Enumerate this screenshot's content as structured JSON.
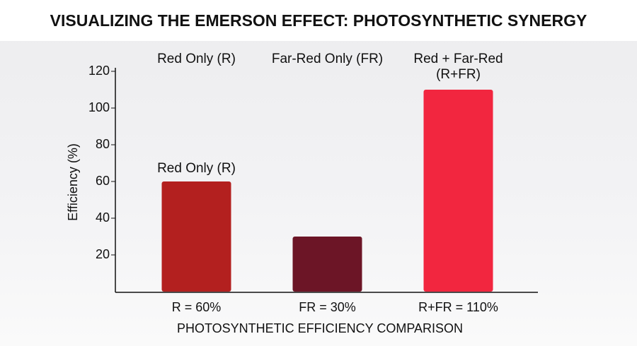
{
  "chart_data": {
    "type": "bar",
    "title": "VISUALIZING THE EMERSON EFFECT: PHOTOSYNTHETIC SYNERGY",
    "categories": [
      "Red Only (R)",
      "Far-Red Only (FR)",
      "Red + Far-Red\n(R+FR)"
    ],
    "values": [
      60,
      30,
      110
    ],
    "value_labels": [
      "R = 60%",
      "FR = 30%",
      "R+FR = 110%"
    ],
    "colors": [
      "#b3201f",
      "#6c1526",
      "#f2263f"
    ],
    "annotation": "Red Only (R)",
    "y_label": "Efficiency (%)",
    "x_label": "PHOTOSYNTHETIC EFFICIENCY COMPARISON",
    "ylim": [
      0,
      120
    ],
    "yticks": [
      20,
      40,
      60,
      80,
      100,
      120
    ],
    "grid": false
  }
}
